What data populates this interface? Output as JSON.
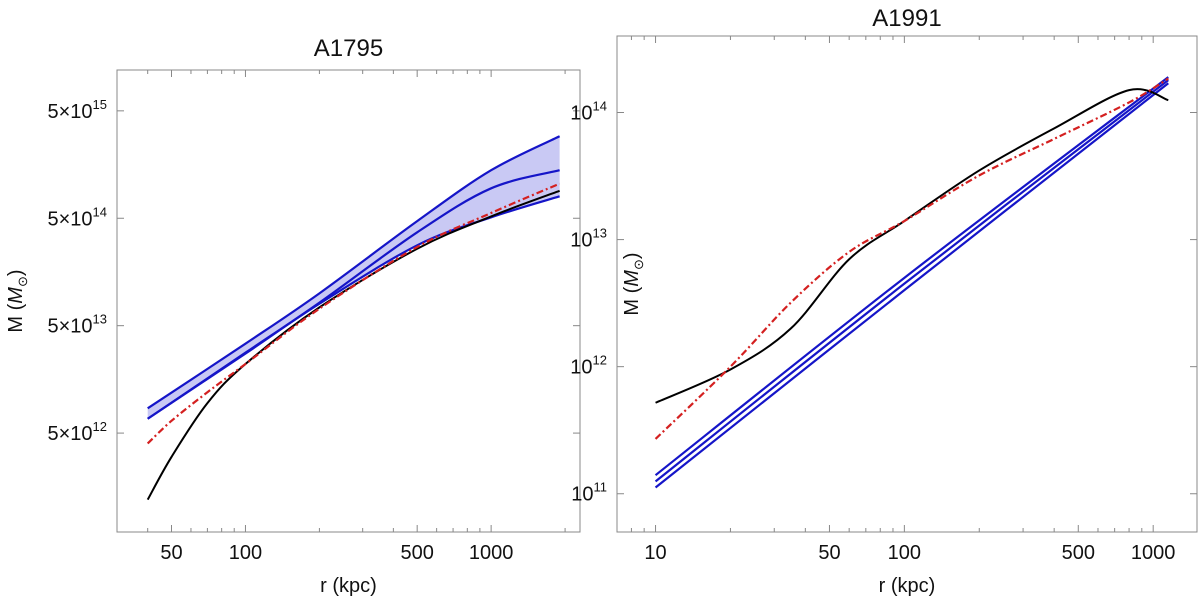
{
  "colors": {
    "black_curve": "#000000",
    "blue_curve": "#1515c8",
    "band_fill": "#c9c9f4",
    "red_curve": "#d42020"
  },
  "chart_data": [
    {
      "type": "line",
      "title": "A1795",
      "xlabel": "r (kpc)",
      "ylabel": "M (M_⊙)",
      "ylabel_text": "M (",
      "ylabel_symbol": "M",
      "ylabel_sub": "⊙",
      "ylabel_close": ")",
      "xscale": "log",
      "yscale": "log",
      "xlim": [
        30,
        2300
      ],
      "ylim": [
        600000000000,
        12000000000000000
      ],
      "xticks": [
        50,
        100,
        500,
        1000
      ],
      "xtick_labels": [
        "50",
        "100",
        "500",
        "1000"
      ],
      "yticks": [
        5000000000000,
        50000000000000,
        500000000000000,
        5000000000000000
      ],
      "ytick_labels": [
        {
          "mant": "5",
          "times": "×",
          "base": "10",
          "exp": "12"
        },
        {
          "mant": "5",
          "times": "×",
          "base": "10",
          "exp": "13"
        },
        {
          "mant": "5",
          "times": "×",
          "base": "10",
          "exp": "14"
        },
        {
          "mant": "5",
          "times": "×",
          "base": "10",
          "exp": "15"
        }
      ],
      "band": {
        "x": [
          40,
          100,
          200,
          500,
          1000,
          1900
        ],
        "lower": [
          6800000000000,
          27500000000000,
          80000000000000,
          280000000000000,
          510000000000000,
          800000000000000
        ],
        "upper": [
          8500000000000,
          34000000000000,
          100000000000000,
          470000000000000,
          1400000000000000,
          2900000000000000
        ]
      },
      "series": [
        {
          "style": "blue",
          "x": [
            40,
            100,
            200,
            500,
            1000,
            1900
          ],
          "y": [
            8500000000000,
            34000000000000,
            100000000000000,
            470000000000000,
            1400000000000000,
            2900000000000000
          ]
        },
        {
          "style": "blue",
          "x": [
            40,
            100,
            200,
            500,
            1000,
            1900
          ],
          "y": [
            6800000000000,
            28000000000000,
            82000000000000,
            370000000000000,
            950000000000000,
            1400000000000000
          ]
        },
        {
          "style": "blue",
          "x": [
            40,
            100,
            200,
            500,
            1000,
            1900
          ],
          "y": [
            6800000000000,
            27500000000000,
            80000000000000,
            280000000000000,
            510000000000000,
            800000000000000
          ]
        },
        {
          "style": "black",
          "x": [
            40,
            50,
            70,
            100,
            200,
            500,
            1000,
            1900
          ],
          "y": [
            1200000000000,
            3000000000000,
            9500000000000,
            22000000000000,
            74000000000000,
            260000000000000,
            520000000000000,
            900000000000000
          ]
        },
        {
          "style": "red",
          "x": [
            40,
            50,
            70,
            100,
            200,
            500,
            1000,
            1900
          ],
          "y": [
            4000000000000,
            6500000000000,
            12000000000000,
            22000000000000,
            72000000000000,
            270000000000000,
            560000000000000,
            1050000000000000
          ]
        }
      ]
    },
    {
      "type": "line",
      "title": "A1991",
      "xlabel": "r (kpc)",
      "ylabel": "M (M_⊙)",
      "ylabel_text": "M (",
      "ylabel_symbol": "M",
      "ylabel_sub": "⊙",
      "ylabel_close": ")",
      "xscale": "log",
      "yscale": "log",
      "xlim": [
        7,
        1500
      ],
      "ylim": [
        50000000000,
        400000000000000
      ],
      "xticks": [
        10,
        50,
        100,
        500,
        1000
      ],
      "xtick_labels": [
        "10",
        "50",
        "100",
        "500",
        "1000"
      ],
      "yticks": [
        100000000000,
        1000000000000,
        10000000000000,
        100000000000000
      ],
      "ytick_labels": [
        {
          "mant": "",
          "times": "",
          "base": "10",
          "exp": "11"
        },
        {
          "mant": "",
          "times": "",
          "base": "10",
          "exp": "12"
        },
        {
          "mant": "",
          "times": "",
          "base": "10",
          "exp": "13"
        },
        {
          "mant": "",
          "times": "",
          "base": "10",
          "exp": "14"
        }
      ],
      "series": [
        {
          "style": "blue",
          "x": [
            10,
            100,
            1150
          ],
          "y": [
            140000000000,
            5000000000000,
            190000000000000
          ]
        },
        {
          "style": "blue",
          "x": [
            10,
            100,
            1150
          ],
          "y": [
            125000000000,
            4500000000000,
            180000000000000
          ]
        },
        {
          "style": "blue",
          "x": [
            10,
            100,
            1150
          ],
          "y": [
            112000000000,
            4000000000000,
            170000000000000
          ]
        },
        {
          "style": "black",
          "x": [
            10,
            20,
            35,
            60,
            100,
            200,
            400,
            800,
            1150
          ],
          "y": [
            520000000000,
            950000000000,
            2000000000000,
            7000000000000,
            14000000000000,
            35000000000000,
            75000000000000,
            150000000000000,
            125000000000000
          ]
        },
        {
          "style": "red",
          "x": [
            10,
            20,
            35,
            60,
            100,
            200,
            400,
            800,
            1150
          ],
          "y": [
            270000000000,
            1000000000000,
            3200000000000,
            8000000000000,
            14000000000000,
            32000000000000,
            62000000000000,
            120000000000000,
            185000000000000
          ]
        }
      ]
    }
  ]
}
